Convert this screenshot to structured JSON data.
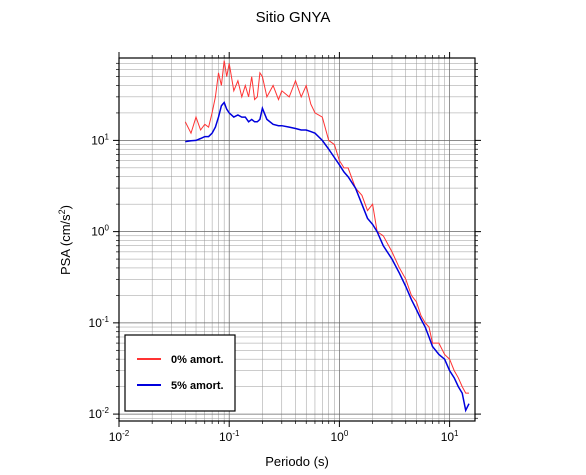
{
  "chart_data": {
    "type": "line",
    "title": "Sitio GNYA",
    "x_label": "Periodo (s)",
    "y_label": {
      "text": "PSA (cm/s",
      "sup": "2",
      "end": ")"
    },
    "x_scale": "log",
    "y_scale": "log",
    "grid": true,
    "minor_grid": true,
    "legend": "lower left",
    "xlim": [
      0.01,
      17
    ],
    "ylim": [
      0.0084,
      80
    ],
    "xticks": [
      {
        "value": 0.01,
        "label": "10",
        "sup": "-2"
      },
      {
        "value": 0.1,
        "label": "10",
        "sup": "-1"
      },
      {
        "value": 1,
        "label": "10",
        "sup": "0"
      },
      {
        "value": 10,
        "label": "10",
        "sup": "1"
      }
    ],
    "yticks": [
      {
        "value": 0.01,
        "label": "10",
        "sup": "-2"
      },
      {
        "value": 0.1,
        "label": "10",
        "sup": "-1"
      },
      {
        "value": 1,
        "label": "10",
        "sup": "0"
      },
      {
        "value": 10,
        "label": "10",
        "sup": "1"
      }
    ],
    "x": [
      0.04,
      0.045,
      0.05,
      0.055,
      0.06,
      0.065,
      0.07,
      0.075,
      0.08,
      0.085,
      0.09,
      0.095,
      0.1,
      0.11,
      0.12,
      0.13,
      0.14,
      0.15,
      0.16,
      0.17,
      0.18,
      0.19,
      0.2,
      0.22,
      0.25,
      0.28,
      0.3,
      0.35,
      0.4,
      0.45,
      0.5,
      0.55,
      0.6,
      0.7,
      0.8,
      0.9,
      1.0,
      1.1,
      1.2,
      1.4,
      1.6,
      1.8,
      2.0,
      2.2,
      2.5,
      3,
      3.5,
      4,
      4.5,
      5,
      5.5,
      6,
      6.5,
      7,
      8,
      9,
      10,
      11,
      12,
      13,
      14,
      15
    ],
    "series": [
      {
        "name": "0% amort.",
        "color": "#ff3333",
        "width": 1,
        "values": [
          16,
          12,
          18,
          13,
          15,
          14,
          20,
          30,
          55,
          40,
          75,
          50,
          70,
          35,
          45,
          30,
          40,
          30,
          50,
          28,
          30,
          55,
          50,
          30,
          40,
          28,
          35,
          30,
          45,
          30,
          40,
          25,
          20,
          18,
          10,
          9,
          6,
          5,
          5,
          3,
          2.5,
          1.7,
          2.0,
          1.0,
          0.9,
          0.6,
          0.4,
          0.3,
          0.2,
          0.17,
          0.12,
          0.1,
          0.09,
          0.06,
          0.06,
          0.045,
          0.04,
          0.03,
          0.025,
          0.02,
          0.017,
          0.017
        ]
      },
      {
        "name": "5% amort.",
        "color": "#0000dd",
        "width": 1.5,
        "values": [
          9.7,
          9.9,
          10,
          10.5,
          11,
          11,
          12,
          14,
          18,
          24,
          26,
          22,
          20,
          18,
          19,
          18,
          18,
          16,
          17,
          16,
          16,
          17,
          22.5,
          17,
          15,
          14.5,
          14.5,
          14,
          13.5,
          13,
          13,
          12.5,
          12,
          10,
          8,
          6.5,
          5.4,
          4.5,
          4,
          3,
          2,
          1.4,
          1.2,
          1.0,
          0.7,
          0.5,
          0.35,
          0.25,
          0.18,
          0.14,
          0.11,
          0.09,
          0.07,
          0.055,
          0.045,
          0.04,
          0.03,
          0.025,
          0.02,
          0.017,
          0.011,
          0.013
        ]
      }
    ]
  }
}
